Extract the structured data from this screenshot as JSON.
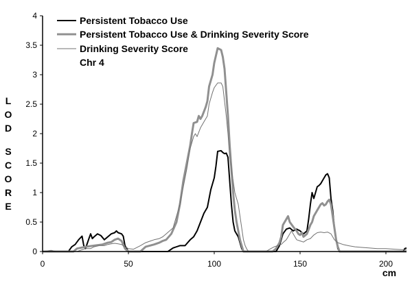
{
  "chart_data": {
    "type": "line",
    "xlabel": "cm",
    "ylabel": "LOD SCORE",
    "xlim": [
      0,
      212
    ],
    "ylim": [
      0,
      4
    ],
    "xticks": [
      0,
      50,
      100,
      150,
      200
    ],
    "yticks": [
      0,
      0.5,
      1,
      1.5,
      2,
      2.5,
      3,
      3.5,
      4
    ],
    "legend_position": "top-left",
    "annotation": "Chr 4",
    "series": [
      {
        "name": "Persistent Tobacco Use",
        "color": "#000000",
        "width": 2,
        "points": [
          [
            0,
            0
          ],
          [
            15,
            0
          ],
          [
            17,
            0.08
          ],
          [
            19,
            0.12
          ],
          [
            21,
            0.2
          ],
          [
            23,
            0.26
          ],
          [
            24,
            0.1
          ],
          [
            25,
            0.05
          ],
          [
            27,
            0.22
          ],
          [
            28,
            0.3
          ],
          [
            29,
            0.22
          ],
          [
            30,
            0.25
          ],
          [
            32,
            0.3
          ],
          [
            34,
            0.27
          ],
          [
            36,
            0.2
          ],
          [
            38,
            0.25
          ],
          [
            40,
            0.3
          ],
          [
            42,
            0.32
          ],
          [
            43,
            0.35
          ],
          [
            44,
            0.32
          ],
          [
            46,
            0.3
          ],
          [
            47,
            0.26
          ],
          [
            48,
            0.1
          ],
          [
            50,
            0
          ],
          [
            73,
            0
          ],
          [
            76,
            0.06
          ],
          [
            80,
            0.1
          ],
          [
            83,
            0.1
          ],
          [
            86,
            0.2
          ],
          [
            88,
            0.25
          ],
          [
            90,
            0.35
          ],
          [
            92,
            0.5
          ],
          [
            94,
            0.65
          ],
          [
            96,
            0.75
          ],
          [
            97,
            0.9
          ],
          [
            98,
            1.05
          ],
          [
            99,
            1.15
          ],
          [
            100,
            1.25
          ],
          [
            101,
            1.45
          ],
          [
            102,
            1.7
          ],
          [
            104,
            1.71
          ],
          [
            105,
            1.68
          ],
          [
            106,
            1.66
          ],
          [
            107,
            1.67
          ],
          [
            108,
            1.6
          ],
          [
            109,
            1.2
          ],
          [
            110,
            0.8
          ],
          [
            111,
            0.5
          ],
          [
            112,
            0.35
          ],
          [
            113,
            0.3
          ],
          [
            114,
            0.25
          ],
          [
            115,
            0.15
          ],
          [
            116,
            0.05
          ],
          [
            117,
            0
          ],
          [
            136,
            0
          ],
          [
            138,
            0.1
          ],
          [
            140,
            0.3
          ],
          [
            142,
            0.38
          ],
          [
            144,
            0.4
          ],
          [
            146,
            0.35
          ],
          [
            148,
            0.38
          ],
          [
            150,
            0.35
          ],
          [
            152,
            0.3
          ],
          [
            154,
            0.35
          ],
          [
            155,
            0.55
          ],
          [
            156,
            0.8
          ],
          [
            157,
            1.0
          ],
          [
            158,
            0.9
          ],
          [
            159,
            1.0
          ],
          [
            160,
            1.1
          ],
          [
            161,
            1.12
          ],
          [
            162,
            1.15
          ],
          [
            163,
            1.2
          ],
          [
            164,
            1.25
          ],
          [
            165,
            1.3
          ],
          [
            166,
            1.32
          ],
          [
            167,
            1.25
          ],
          [
            168,
            0.9
          ],
          [
            169,
            0.7
          ],
          [
            170,
            0.4
          ],
          [
            171,
            0.2
          ],
          [
            172,
            0.05
          ],
          [
            173,
            0
          ],
          [
            210,
            0
          ],
          [
            211,
            0.05
          ],
          [
            212,
            0.06
          ]
        ]
      },
      {
        "name": "Persistent Tobacco Use & Drinking Severity Score",
        "color": "#909090",
        "width": 3,
        "points": [
          [
            0,
            0
          ],
          [
            18,
            0
          ],
          [
            20,
            0.05
          ],
          [
            25,
            0.08
          ],
          [
            30,
            0.1
          ],
          [
            35,
            0.12
          ],
          [
            38,
            0.15
          ],
          [
            40,
            0.16
          ],
          [
            42,
            0.2
          ],
          [
            44,
            0.22
          ],
          [
            46,
            0.18
          ],
          [
            47,
            0.12
          ],
          [
            48,
            0.05
          ],
          [
            50,
            0
          ],
          [
            57,
            0
          ],
          [
            60,
            0.08
          ],
          [
            65,
            0.12
          ],
          [
            68,
            0.15
          ],
          [
            70,
            0.18
          ],
          [
            72,
            0.2
          ],
          [
            75,
            0.3
          ],
          [
            78,
            0.5
          ],
          [
            80,
            0.8
          ],
          [
            82,
            1.2
          ],
          [
            84,
            1.5
          ],
          [
            86,
            1.8
          ],
          [
            87,
            2.0
          ],
          [
            88,
            2.18
          ],
          [
            90,
            2.2
          ],
          [
            91,
            2.3
          ],
          [
            92,
            2.25
          ],
          [
            93,
            2.3
          ],
          [
            95,
            2.45
          ],
          [
            96,
            2.55
          ],
          [
            97,
            2.8
          ],
          [
            98,
            2.9
          ],
          [
            99,
            3.0
          ],
          [
            100,
            3.2
          ],
          [
            102,
            3.45
          ],
          [
            104,
            3.42
          ],
          [
            105,
            3.3
          ],
          [
            106,
            3.1
          ],
          [
            107,
            2.7
          ],
          [
            108,
            2.3
          ],
          [
            109,
            1.8
          ],
          [
            110,
            1.4
          ],
          [
            111,
            1.0
          ],
          [
            112,
            0.7
          ],
          [
            113,
            0.5
          ],
          [
            114,
            0.35
          ],
          [
            115,
            0.2
          ],
          [
            116,
            0.1
          ],
          [
            117,
            0
          ],
          [
            134,
            0
          ],
          [
            136,
            0.05
          ],
          [
            138,
            0.15
          ],
          [
            139,
            0.25
          ],
          [
            140,
            0.45
          ],
          [
            142,
            0.55
          ],
          [
            143,
            0.6
          ],
          [
            144,
            0.5
          ],
          [
            146,
            0.42
          ],
          [
            148,
            0.35
          ],
          [
            149,
            0.3
          ],
          [
            150,
            0.28
          ],
          [
            151,
            0.32
          ],
          [
            152,
            0.25
          ],
          [
            154,
            0.3
          ],
          [
            156,
            0.45
          ],
          [
            157,
            0.5
          ],
          [
            158,
            0.6
          ],
          [
            160,
            0.7
          ],
          [
            162,
            0.8
          ],
          [
            163,
            0.82
          ],
          [
            164,
            0.78
          ],
          [
            165,
            0.8
          ],
          [
            166,
            0.85
          ],
          [
            167,
            0.88
          ],
          [
            168,
            0.8
          ],
          [
            169,
            0.6
          ],
          [
            170,
            0.4
          ],
          [
            171,
            0.2
          ],
          [
            172,
            0.08
          ],
          [
            173,
            0
          ],
          [
            212,
            0
          ]
        ]
      },
      {
        "name": "Drinking Severity Score",
        "color": "#707070",
        "width": 1,
        "points": [
          [
            0,
            0
          ],
          [
            5,
            0.02
          ],
          [
            8,
            0
          ],
          [
            20,
            0
          ],
          [
            23,
            0.03
          ],
          [
            25,
            0.05
          ],
          [
            28,
            0.05
          ],
          [
            30,
            0.08
          ],
          [
            33,
            0.1
          ],
          [
            36,
            0.1
          ],
          [
            38,
            0.12
          ],
          [
            40,
            0.13
          ],
          [
            42,
            0.14
          ],
          [
            44,
            0.13
          ],
          [
            46,
            0.12
          ],
          [
            48,
            0.08
          ],
          [
            50,
            0.05
          ],
          [
            53,
            0.04
          ],
          [
            57,
            0.1
          ],
          [
            60,
            0.15
          ],
          [
            63,
            0.18
          ],
          [
            65,
            0.2
          ],
          [
            68,
            0.22
          ],
          [
            70,
            0.25
          ],
          [
            72,
            0.3
          ],
          [
            74,
            0.35
          ],
          [
            76,
            0.4
          ],
          [
            78,
            0.6
          ],
          [
            80,
            0.8
          ],
          [
            82,
            1.1
          ],
          [
            84,
            1.4
          ],
          [
            86,
            1.75
          ],
          [
            88,
            1.95
          ],
          [
            89,
            2.0
          ],
          [
            90,
            1.95
          ],
          [
            92,
            2.1
          ],
          [
            94,
            2.2
          ],
          [
            95,
            2.25
          ],
          [
            96,
            2.3
          ],
          [
            97,
            2.5
          ],
          [
            98,
            2.6
          ],
          [
            99,
            2.7
          ],
          [
            100,
            2.78
          ],
          [
            102,
            2.86
          ],
          [
            104,
            2.86
          ],
          [
            105,
            2.8
          ],
          [
            106,
            2.55
          ],
          [
            107,
            2.3
          ],
          [
            108,
            2.0
          ],
          [
            109,
            1.6
          ],
          [
            110,
            1.4
          ],
          [
            111,
            1.2
          ],
          [
            112,
            1.0
          ],
          [
            113,
            0.9
          ],
          [
            114,
            0.8
          ],
          [
            115,
            0.6
          ],
          [
            116,
            0.4
          ],
          [
            117,
            0.2
          ],
          [
            118,
            0.1
          ],
          [
            119,
            0.04
          ],
          [
            120,
            0
          ],
          [
            130,
            0
          ],
          [
            133,
            0.05
          ],
          [
            135,
            0.08
          ],
          [
            137,
            0.1
          ],
          [
            139,
            0.12
          ],
          [
            140,
            0.15
          ],
          [
            142,
            0.2
          ],
          [
            144,
            0.3
          ],
          [
            145,
            0.35
          ],
          [
            146,
            0.3
          ],
          [
            147,
            0.25
          ],
          [
            148,
            0.2
          ],
          [
            150,
            0.18
          ],
          [
            152,
            0.16
          ],
          [
            154,
            0.2
          ],
          [
            156,
            0.22
          ],
          [
            158,
            0.28
          ],
          [
            160,
            0.32
          ],
          [
            162,
            0.33
          ],
          [
            164,
            0.32
          ],
          [
            166,
            0.33
          ],
          [
            168,
            0.3
          ],
          [
            170,
            0.2
          ],
          [
            172,
            0.15
          ],
          [
            175,
            0.12
          ],
          [
            178,
            0.1
          ],
          [
            182,
            0.08
          ],
          [
            186,
            0.07
          ],
          [
            190,
            0.06
          ],
          [
            195,
            0.05
          ],
          [
            200,
            0.05
          ],
          [
            205,
            0.04
          ],
          [
            210,
            0.03
          ],
          [
            212,
            0.03
          ]
        ]
      }
    ]
  }
}
